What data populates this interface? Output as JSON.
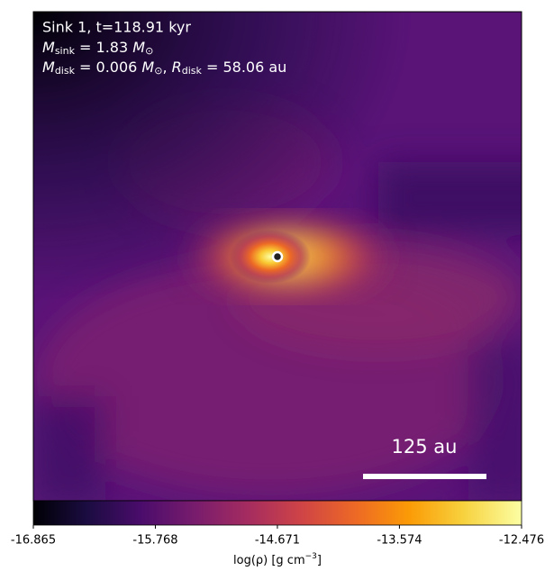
{
  "figure": {
    "title": "Sink 1, t=118.91 kyr",
    "sink_mass": {
      "symbol": "M",
      "subscript": "sink",
      "text": " = 1.83 ",
      "unit": "M",
      "unit_subscript": "⊙"
    },
    "disk": {
      "symbol": "M",
      "subscript": "disk",
      "text": " = 0.006 ",
      "unit": "M",
      "unit_subscript": "⊙",
      "separator": ", ",
      "symbol2": "R",
      "subscript2": "disk",
      "text2": " = 58.06 au"
    },
    "scale_bar": "125 au",
    "colorbar": {
      "lim": [
        -16.865,
        -12.476
      ],
      "ticks": [
        -16.865,
        -15.768,
        -14.671,
        -13.574,
        -12.476
      ],
      "label": {
        "text": "log(ρ) [g cm",
        "superscript": "−3",
        "close": "]"
      }
    }
  }
}
